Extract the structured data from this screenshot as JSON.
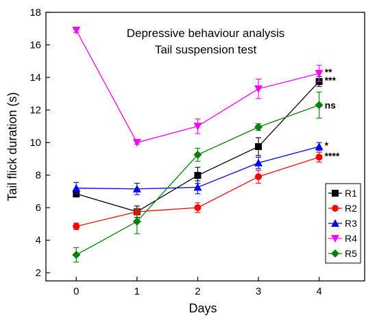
{
  "chart_data": {
    "type": "line",
    "title_lines": [
      "Depressive behaviour analysis",
      "Tail suspension test"
    ],
    "xlabel": "Days",
    "ylabel": "Tail flick duration (s)",
    "xlim": [
      -0.5,
      4.75
    ],
    "ylim": [
      1.5,
      18
    ],
    "x_ticks": [
      0,
      1,
      2,
      3,
      4
    ],
    "y_ticks": [
      2,
      4,
      6,
      8,
      10,
      12,
      14,
      16,
      18
    ],
    "x": [
      0,
      1,
      2,
      3,
      4
    ],
    "legend_position": "bottom-right",
    "grid": false,
    "series": [
      {
        "name": "R1",
        "color": "#000000",
        "marker": "square",
        "values": [
          6.85,
          5.75,
          7.98,
          9.75,
          13.75
        ],
        "errors": [
          0.2,
          0.35,
          0.5,
          0.55,
          0.3
        ],
        "significance": "***"
      },
      {
        "name": "R2",
        "color": "#ff0000",
        "marker": "circle",
        "values": [
          4.85,
          5.75,
          6.0,
          7.9,
          9.1
        ],
        "errors": [
          0.2,
          0.2,
          0.3,
          0.4,
          0.3
        ],
        "significance": "****"
      },
      {
        "name": "R3",
        "color": "#0000ff",
        "marker": "triangle-up",
        "values": [
          7.2,
          7.15,
          7.25,
          8.75,
          9.75
        ],
        "errors": [
          0.35,
          0.35,
          0.4,
          0.35,
          0.25
        ],
        "significance": "*"
      },
      {
        "name": "R4",
        "color": "#ff00ff",
        "marker": "triangle-down",
        "values": [
          16.9,
          10.0,
          11.0,
          13.3,
          14.25
        ],
        "errors": [
          0.15,
          0.1,
          0.45,
          0.6,
          0.5
        ],
        "significance": "**"
      },
      {
        "name": "R5",
        "color": "#008000",
        "marker": "diamond",
        "values": [
          3.1,
          5.15,
          9.25,
          10.95,
          12.3
        ],
        "errors": [
          0.45,
          0.75,
          0.4,
          0.2,
          0.8
        ],
        "significance": "ns"
      }
    ]
  }
}
